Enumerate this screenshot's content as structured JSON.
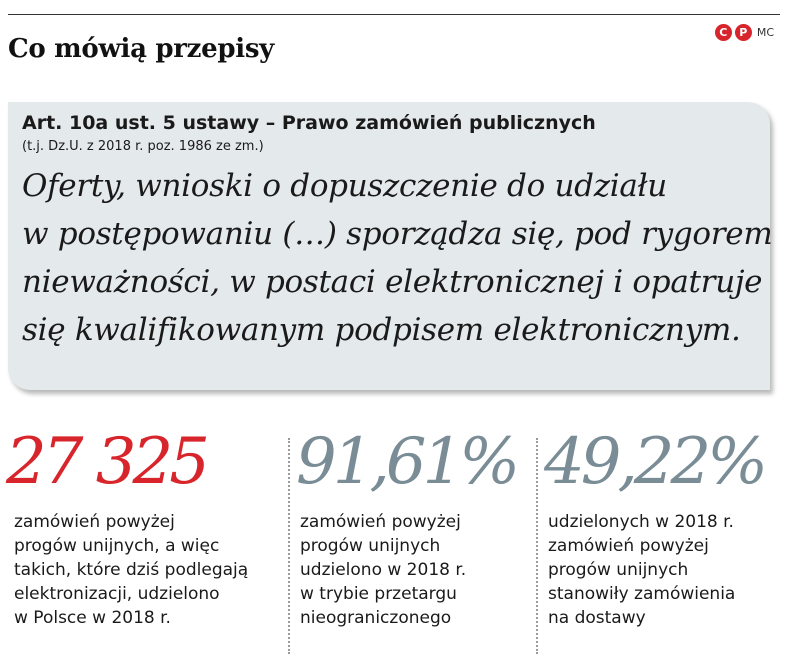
{
  "header": {
    "title": "Co mówią przepisy",
    "badge_letters": [
      "C",
      "P"
    ],
    "badge_text": "MC"
  },
  "quote": {
    "law_title": "Art. 10a ust. 5 ustawy – Prawo zamówień publicznych",
    "law_source": "(t.j. Dz.U. z 2018 r. poz. 1986 ze zm.)",
    "lines": [
      "Oferty, wnioski o dopuszczenie do udziału",
      "w postępowaniu (…) sporządza się, pod rygorem",
      "nieważności, w postaci elektronicznej i opatruje",
      "się kwalifikowanym podpisem elektronicznym."
    ]
  },
  "stats": [
    {
      "value": "27 325",
      "color": "#d7252b",
      "desc_lines": [
        "zamówień powyżej",
        "progów unijnych, a więc",
        "takich, które dziś podlegają",
        "elektronizacji, udzielono",
        "w Polsce w 2018 r."
      ]
    },
    {
      "value": "91,61%",
      "color": "#7a8c95",
      "desc_lines": [
        "zamówień powyżej",
        "progów unijnych",
        "udzielono w 2018 r.",
        "w trybie przetargu",
        "nieograniczonego"
      ]
    },
    {
      "value": "49,22%",
      "color": "#7a8c95",
      "desc_lines": [
        "udzielonych w 2018 r.",
        "zamówień powyżej",
        "progów unijnych",
        "stanowiły zamówienia",
        "na dostawy"
      ]
    }
  ]
}
